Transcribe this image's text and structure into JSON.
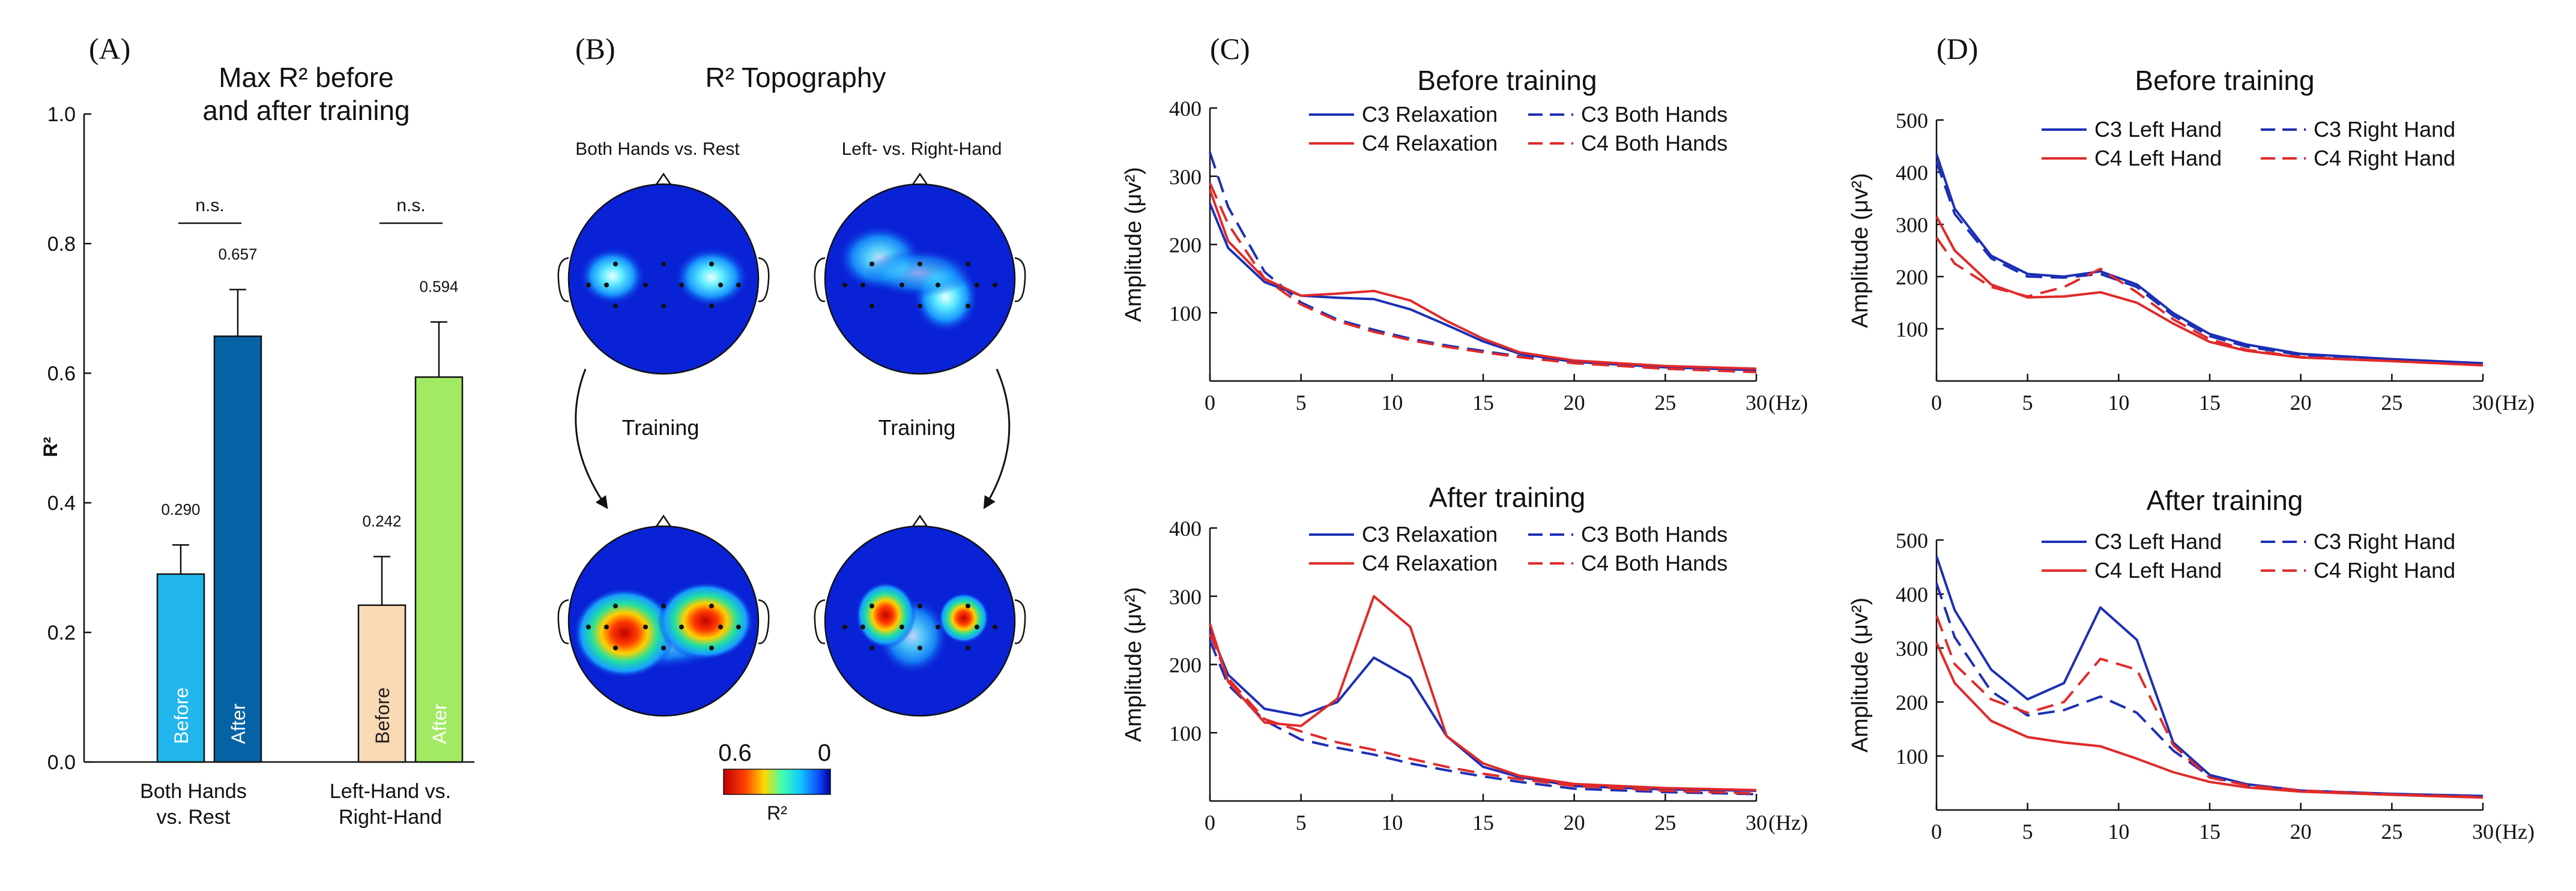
{
  "panel_labels": {
    "a": "(A)",
    "b": "(B)",
    "c": "(C)",
    "d": "(D)"
  },
  "chart_data": [
    {
      "id": "A",
      "type": "bar",
      "title_line1": "Max  R² before",
      "title_line2": "and after training",
      "ylabel": "R²",
      "ylim": [
        0,
        1.0
      ],
      "yticks": [
        "0.0",
        "0.2",
        "0.4",
        "0.6",
        "0.8",
        "1.0"
      ],
      "groups": [
        {
          "name": "both-hands-vs-rest",
          "label_line1": "Both Hands",
          "label_line2": "vs. Rest",
          "significance": "n.s.",
          "bars": [
            {
              "label": "Before",
              "value": 0.29,
              "value_text": "0.290",
              "error": 0.045,
              "color": "#22b5ee"
            },
            {
              "label": "After",
              "value": 0.657,
              "value_text": "0.657",
              "error": 0.072,
              "color": "#0563a5"
            }
          ]
        },
        {
          "name": "left-vs-right-hand",
          "label_line1": "Left-Hand vs.",
          "label_line2": "Right-Hand",
          "significance": "n.s.",
          "bars": [
            {
              "label": "Before",
              "value": 0.242,
              "value_text": "0.242",
              "error": 0.075,
              "color": "#fad9b5"
            },
            {
              "label": "After",
              "value": 0.594,
              "value_text": "0.594",
              "error": 0.085,
              "color": "#a2ea64"
            }
          ]
        }
      ]
    },
    {
      "id": "B",
      "type": "heatmap",
      "title": "R² Topography",
      "columns": [
        "Both Hands vs. Rest",
        "Left- vs. Right-Hand"
      ],
      "arrow_label": "Training",
      "colorbar": {
        "max_label": "0.6",
        "min_label": "0",
        "label": "R²"
      }
    },
    {
      "id": "C-before",
      "type": "line",
      "title": "Before training",
      "ylabel": "Amplitude (μv²)",
      "xunit": "(Hz)",
      "xlim": [
        0,
        30
      ],
      "ylim": [
        0,
        400
      ],
      "xticks": [
        "0",
        "5",
        "10",
        "15",
        "20",
        "25",
        "30"
      ],
      "yticks": [
        "100",
        "200",
        "300",
        "400"
      ],
      "x": [
        0,
        1,
        3,
        5,
        7,
        9,
        11,
        13,
        15,
        17,
        20,
        25,
        30
      ],
      "series": [
        {
          "name": "C3 Relaxation",
          "color": "#1c2fb5",
          "dash": false,
          "values": [
            260,
            195,
            145,
            125,
            122,
            120,
            105,
            82,
            58,
            40,
            28,
            20,
            16
          ]
        },
        {
          "name": "C3 Both Hands",
          "color": "#1c2fb5",
          "dash": true,
          "values": [
            335,
            255,
            160,
            115,
            90,
            75,
            62,
            52,
            44,
            36,
            27,
            18,
            13
          ]
        },
        {
          "name": "C4 Relaxation",
          "color": "#e02a2a",
          "dash": false,
          "values": [
            280,
            205,
            150,
            125,
            128,
            132,
            118,
            88,
            62,
            42,
            30,
            22,
            18
          ]
        },
        {
          "name": "C4 Both Hands",
          "color": "#e02a2a",
          "dash": true,
          "values": [
            290,
            230,
            150,
            112,
            88,
            72,
            60,
            50,
            42,
            35,
            26,
            18,
            13
          ]
        }
      ]
    },
    {
      "id": "C-after",
      "type": "line",
      "title": "After training",
      "ylabel": "Amplitude (μv²)",
      "xunit": "(Hz)",
      "xlim": [
        0,
        30
      ],
      "ylim": [
        0,
        400
      ],
      "xticks": [
        "0",
        "5",
        "10",
        "15",
        "20",
        "25",
        "30"
      ],
      "yticks": [
        "100",
        "200",
        "300",
        "400"
      ],
      "x": [
        0,
        1,
        3,
        5,
        7,
        9,
        11,
        13,
        15,
        17,
        20,
        25,
        30
      ],
      "series": [
        {
          "name": "C3 Relaxation",
          "color": "#1c2fb5",
          "dash": false,
          "values": [
            250,
            185,
            135,
            125,
            145,
            210,
            180,
            95,
            50,
            35,
            22,
            17,
            15
          ]
        },
        {
          "name": "C3 Both Hands",
          "color": "#1c2fb5",
          "dash": true,
          "values": [
            235,
            170,
            118,
            90,
            78,
            68,
            55,
            45,
            36,
            28,
            18,
            13,
            10
          ]
        },
        {
          "name": "C4 Relaxation",
          "color": "#e02a2a",
          "dash": false,
          "values": [
            260,
            175,
            115,
            110,
            150,
            300,
            255,
            95,
            55,
            37,
            25,
            19,
            16
          ]
        },
        {
          "name": "C4 Both Hands",
          "color": "#e02a2a",
          "dash": true,
          "values": [
            245,
            180,
            120,
            102,
            86,
            75,
            62,
            50,
            40,
            32,
            22,
            15,
            11
          ]
        }
      ]
    },
    {
      "id": "D-before",
      "type": "line",
      "title": "Before training",
      "ylabel": "Amplitude (μv²)",
      "xunit": "(Hz)",
      "xlim": [
        0,
        30
      ],
      "ylim": [
        0,
        500
      ],
      "xticks": [
        "0",
        "5",
        "10",
        "15",
        "20",
        "25",
        "30"
      ],
      "yticks": [
        "100",
        "200",
        "300",
        "400",
        "500"
      ],
      "x": [
        0,
        1,
        3,
        5,
        7,
        9,
        11,
        13,
        15,
        17,
        20,
        25,
        30
      ],
      "series": [
        {
          "name": "C3 Left Hand",
          "color": "#1c2fb5",
          "dash": false,
          "values": [
            435,
            330,
            240,
            205,
            200,
            210,
            185,
            130,
            90,
            70,
            52,
            42,
            34
          ]
        },
        {
          "name": "C3 Right Hand",
          "color": "#1c2fb5",
          "dash": true,
          "values": [
            420,
            320,
            235,
            200,
            198,
            205,
            180,
            125,
            86,
            66,
            50,
            40,
            32
          ]
        },
        {
          "name": "C4 Left Hand",
          "color": "#e02a2a",
          "dash": false,
          "values": [
            315,
            250,
            185,
            160,
            162,
            170,
            150,
            110,
            75,
            58,
            45,
            38,
            30
          ]
        },
        {
          "name": "C4 Right Hand",
          "color": "#e02a2a",
          "dash": true,
          "values": [
            275,
            225,
            180,
            162,
            180,
            215,
            170,
            118,
            80,
            60,
            46,
            38,
            30
          ]
        }
      ]
    },
    {
      "id": "D-after",
      "type": "line",
      "title": "After training",
      "ylabel": "Amplitude (μv²)",
      "xunit": "(Hz)",
      "xlim": [
        0,
        30
      ],
      "ylim": [
        0,
        500
      ],
      "xticks": [
        "0",
        "5",
        "10",
        "15",
        "20",
        "25",
        "30"
      ],
      "yticks": [
        "100",
        "200",
        "300",
        "400",
        "500"
      ],
      "x": [
        0,
        1,
        3,
        5,
        7,
        9,
        11,
        13,
        15,
        17,
        20,
        25,
        30
      ],
      "series": [
        {
          "name": "C3 Left Hand",
          "color": "#1c2fb5",
          "dash": false,
          "values": [
            470,
            370,
            260,
            205,
            235,
            375,
            315,
            125,
            65,
            48,
            36,
            30,
            26
          ]
        },
        {
          "name": "C3 Right Hand",
          "color": "#1c2fb5",
          "dash": true,
          "values": [
            420,
            320,
            220,
            175,
            185,
            210,
            180,
            110,
            62,
            46,
            36,
            29,
            25
          ]
        },
        {
          "name": "C4 Left Hand",
          "color": "#e02a2a",
          "dash": false,
          "values": [
            310,
            235,
            165,
            135,
            125,
            118,
            95,
            70,
            52,
            42,
            34,
            28,
            23
          ]
        },
        {
          "name": "C4 Right Hand",
          "color": "#e02a2a",
          "dash": true,
          "values": [
            360,
            270,
            205,
            180,
            200,
            280,
            260,
            120,
            60,
            46,
            36,
            29,
            24
          ]
        }
      ]
    }
  ]
}
